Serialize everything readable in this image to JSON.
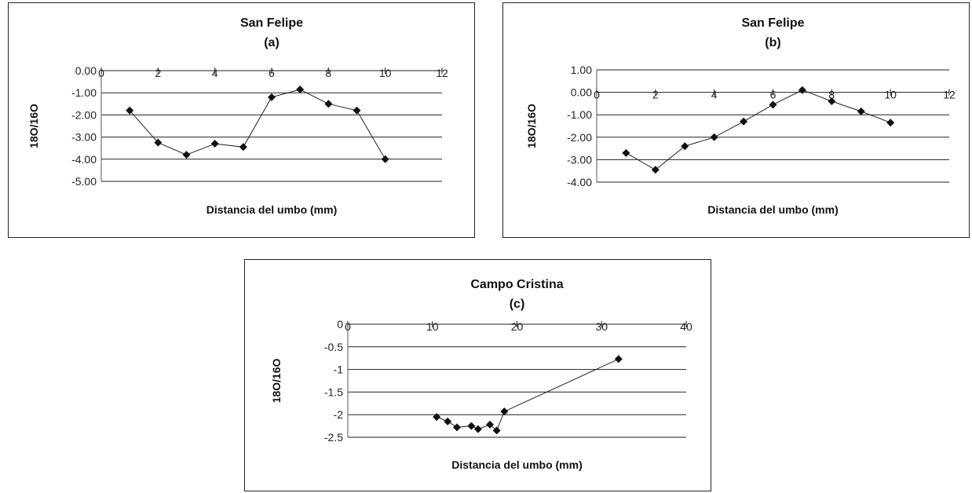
{
  "chart_data": [
    {
      "id": "a",
      "type": "line",
      "title": "San Felipe",
      "subtitle": "(a)",
      "xlabel": "Distancia del umbo (mm)",
      "ylabel": "18O/16O",
      "xlim": [
        0,
        12
      ],
      "ylim": [
        -5,
        0
      ],
      "xticks": [
        "0",
        "2",
        "4",
        "6",
        "8",
        "10",
        "12"
      ],
      "yticks": [
        "0.00",
        "-1.00",
        "-2.00",
        "-3.00",
        "-4.00",
        "-5.00"
      ],
      "grid": true,
      "series": [
        {
          "x": [
            1,
            2,
            3,
            4,
            5,
            6,
            7,
            8,
            9,
            10
          ],
          "y": [
            -1.8,
            -3.25,
            -3.8,
            -3.3,
            -3.45,
            -1.2,
            -0.85,
            -1.5,
            -1.8,
            -4.0
          ]
        }
      ]
    },
    {
      "id": "b",
      "type": "line",
      "title": "San Felipe",
      "subtitle": "(b)",
      "xlabel": "Distancia del umbo (mm)",
      "ylabel": "18O/16O",
      "xlim": [
        0,
        12
      ],
      "ylim": [
        -4,
        1
      ],
      "xticks": [
        "0",
        "2",
        "4",
        "6",
        "8",
        "10",
        "12"
      ],
      "yticks": [
        "1.00",
        "0.00",
        "-1.00",
        "-2.00",
        "-3.00",
        "-4.00"
      ],
      "grid": true,
      "series": [
        {
          "x": [
            1,
            2,
            3,
            4,
            5,
            6,
            7,
            8,
            9,
            10
          ],
          "y": [
            -2.7,
            -3.45,
            -2.4,
            -2.0,
            -1.3,
            -0.55,
            0.1,
            -0.4,
            -0.85,
            -1.35
          ]
        }
      ]
    },
    {
      "id": "c",
      "type": "line",
      "title": "Campo Cristina",
      "subtitle": "(c)",
      "xlabel": "Distancia del umbo (mm)",
      "ylabel": "18O/16O",
      "xlim": [
        0,
        40
      ],
      "ylim": [
        -2.5,
        0
      ],
      "xticks": [
        "0",
        "10",
        "20",
        "30",
        "40"
      ],
      "yticks": [
        "0",
        "-0.5",
        "-1",
        "-1.5",
        "-2",
        "-2.5"
      ],
      "grid": true,
      "series": [
        {
          "x": [
            10.5,
            11.8,
            12.9,
            14.6,
            15.4,
            16.8,
            17.6,
            18.5,
            32
          ],
          "y": [
            -2.05,
            -2.15,
            -2.28,
            -2.25,
            -2.32,
            -2.22,
            -2.35,
            -1.93,
            -0.77
          ]
        }
      ]
    }
  ]
}
